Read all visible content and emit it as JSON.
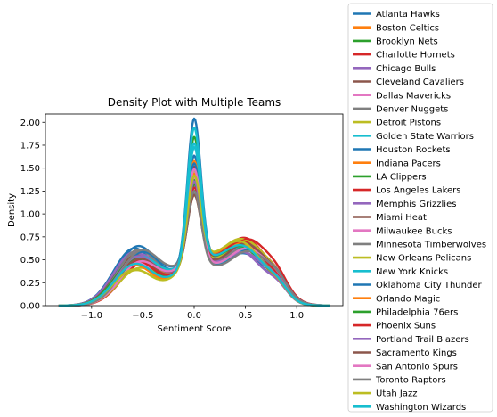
{
  "chart_data": {
    "type": "line",
    "title": "Density Plot with Multiple Teams",
    "xlabel": "Sentiment Score",
    "ylabel": "Density",
    "xlim": [
      -1.45,
      1.45
    ],
    "ylim": [
      0,
      2.09
    ],
    "x_ticks": [
      -1.0,
      -0.5,
      0.0,
      0.5,
      1.0
    ],
    "x_tick_labels": [
      "−1.0",
      "−0.5",
      "0.0",
      "0.5",
      "1.0"
    ],
    "y_ticks": [
      0.0,
      0.25,
      0.5,
      0.75,
      1.0,
      1.25,
      1.5,
      1.75,
      2.0
    ],
    "y_tick_labels": [
      "0.00",
      "0.25",
      "0.50",
      "0.75",
      "1.00",
      "1.25",
      "1.50",
      "1.75",
      "2.00"
    ],
    "grid": false,
    "legend_position": "outside-right",
    "series": [
      {
        "name": "Atlanta Hawks",
        "color": "#1f77b4",
        "peak_neg": 0.62,
        "peak_center": 1.97,
        "peak_pos": 0.58
      },
      {
        "name": "Boston Celtics",
        "color": "#ff7f0e",
        "peak_neg": 0.5,
        "peak_center": 1.3,
        "peak_pos": 0.68
      },
      {
        "name": "Brooklyn Nets",
        "color": "#2ca02c",
        "peak_neg": 0.46,
        "peak_center": 1.78,
        "peak_pos": 0.6
      },
      {
        "name": "Charlotte Hornets",
        "color": "#d62728",
        "peak_neg": 0.52,
        "peak_center": 1.45,
        "peak_pos": 0.72
      },
      {
        "name": "Chicago Bulls",
        "color": "#9467bd",
        "peak_neg": 0.55,
        "peak_center": 1.38,
        "peak_pos": 0.6
      },
      {
        "name": "Cleveland Cavaliers",
        "color": "#8c564b",
        "peak_neg": 0.5,
        "peak_center": 1.2,
        "peak_pos": 0.66
      },
      {
        "name": "Dallas Mavericks",
        "color": "#e377c2",
        "peak_neg": 0.48,
        "peak_center": 1.4,
        "peak_pos": 0.62
      },
      {
        "name": "Denver Nuggets",
        "color": "#7f7f7f",
        "peak_neg": 0.56,
        "peak_center": 1.14,
        "peak_pos": 0.64
      },
      {
        "name": "Detroit Pistons",
        "color": "#bcbd22",
        "peak_neg": 0.38,
        "peak_center": 1.24,
        "peak_pos": 0.7
      },
      {
        "name": "Golden State Warriors",
        "color": "#17becf",
        "peak_neg": 0.44,
        "peak_center": 1.88,
        "peak_pos": 0.62
      },
      {
        "name": "Houston Rockets",
        "color": "#1f77b4",
        "peak_neg": 0.64,
        "peak_center": 1.58,
        "peak_pos": 0.55
      },
      {
        "name": "Indiana Pacers",
        "color": "#ff7f0e",
        "peak_neg": 0.47,
        "peak_center": 1.52,
        "peak_pos": 0.66
      },
      {
        "name": "LA Clippers",
        "color": "#2ca02c",
        "peak_neg": 0.5,
        "peak_center": 1.32,
        "peak_pos": 0.6
      },
      {
        "name": "Los Angeles Lakers",
        "color": "#d62728",
        "peak_neg": 0.45,
        "peak_center": 1.28,
        "peak_pos": 0.71
      },
      {
        "name": "Memphis Grizzlies",
        "color": "#9467bd",
        "peak_neg": 0.58,
        "peak_center": 1.24,
        "peak_pos": 0.57
      },
      {
        "name": "Miami Heat",
        "color": "#8c564b",
        "peak_neg": 0.54,
        "peak_center": 1.18,
        "peak_pos": 0.63
      },
      {
        "name": "Milwaukee Bucks",
        "color": "#e377c2",
        "peak_neg": 0.46,
        "peak_center": 1.34,
        "peak_pos": 0.67
      },
      {
        "name": "Minnesota Timberwolves",
        "color": "#7f7f7f",
        "peak_neg": 0.6,
        "peak_center": 1.16,
        "peak_pos": 0.6
      },
      {
        "name": "New Orleans Pelicans",
        "color": "#bcbd22",
        "peak_neg": 0.4,
        "peak_center": 1.42,
        "peak_pos": 0.69
      },
      {
        "name": "New York Knicks",
        "color": "#17becf",
        "peak_neg": 0.52,
        "peak_center": 1.72,
        "peak_pos": 0.6
      },
      {
        "name": "Oklahoma City Thunder",
        "color": "#1f77b4",
        "peak_neg": 0.57,
        "peak_center": 1.5,
        "peak_pos": 0.59
      },
      {
        "name": "Orlando Magic",
        "color": "#ff7f0e",
        "peak_neg": 0.44,
        "peak_center": 1.36,
        "peak_pos": 0.65
      },
      {
        "name": "Philadelphia 76ers",
        "color": "#2ca02c",
        "peak_neg": 0.5,
        "peak_center": 1.26,
        "peak_pos": 0.62
      },
      {
        "name": "Phoenix Suns",
        "color": "#d62728",
        "peak_neg": 0.48,
        "peak_center": 1.22,
        "peak_pos": 0.68
      },
      {
        "name": "Portland Trail Blazers",
        "color": "#9467bd",
        "peak_neg": 0.53,
        "peak_center": 1.3,
        "peak_pos": 0.56
      },
      {
        "name": "Sacramento Kings",
        "color": "#8c564b",
        "peak_neg": 0.5,
        "peak_center": 1.15,
        "peak_pos": 0.66
      },
      {
        "name": "San Antonio Spurs",
        "color": "#e377c2",
        "peak_neg": 0.47,
        "peak_center": 1.44,
        "peak_pos": 0.61
      },
      {
        "name": "Toronto Raptors",
        "color": "#7f7f7f",
        "peak_neg": 0.59,
        "peak_center": 1.2,
        "peak_pos": 0.58
      },
      {
        "name": "Utah Jazz",
        "color": "#bcbd22",
        "peak_neg": 0.39,
        "peak_center": 1.34,
        "peak_pos": 0.67
      },
      {
        "name": "Washington Wizards",
        "color": "#17becf",
        "peak_neg": 0.45,
        "peak_center": 1.66,
        "peak_pos": 0.63
      }
    ]
  }
}
